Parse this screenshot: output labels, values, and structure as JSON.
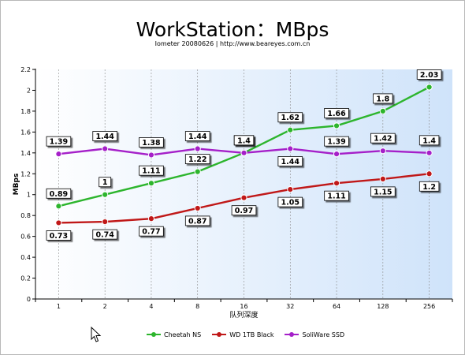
{
  "chart_data": {
    "type": "line",
    "title": "WorkStation：MBps",
    "subtitle": "Iometer 20080626 | http://www.beareyes.com.cn",
    "xlabel": "队列深度",
    "ylabel": "MBps",
    "categories": [
      "1",
      "2",
      "4",
      "8",
      "16",
      "32",
      "64",
      "128",
      "256"
    ],
    "ylim": [
      0,
      2.2
    ],
    "yticks": [
      "0",
      "0.2",
      "0.4",
      "0.6",
      "0.8",
      "1",
      "1.2",
      "1.4",
      "1.6",
      "1.8",
      "2",
      "2.2"
    ],
    "grid": {
      "vertical_dashed": true,
      "horizontal": false
    },
    "plot_background": "gradient white to light blue",
    "series": [
      {
        "name": "Cheetah NS",
        "color": "#2db52d",
        "values": [
          0.89,
          1,
          1.11,
          1.22,
          1.4,
          1.62,
          1.66,
          1.8,
          2.03
        ],
        "labels": [
          "0.89",
          "1",
          "1.11",
          "1.22",
          "1.4",
          "1.62",
          "1.66",
          "1.8",
          "2.03"
        ]
      },
      {
        "name": "WD 1TB Black",
        "color": "#c01818",
        "values": [
          0.73,
          0.74,
          0.77,
          0.87,
          0.97,
          1.05,
          1.11,
          1.15,
          1.2
        ],
        "labels": [
          "0.73",
          "0.74",
          "0.77",
          "0.87",
          "0.97",
          "1.05",
          "1.11",
          "1.15",
          "1.2"
        ]
      },
      {
        "name": "SoliWare SSD",
        "color": "#a520c9",
        "values": [
          1.39,
          1.44,
          1.38,
          1.44,
          1.4,
          1.44,
          1.39,
          1.42,
          1.4
        ],
        "labels": [
          "1.39",
          "1.44",
          "1.38",
          "1.44",
          "1.4",
          "1.44",
          "1.39",
          "1.42",
          "1.4"
        ]
      }
    ],
    "legend": {
      "position": "bottom"
    }
  },
  "ui": {
    "cursor_icon": "mouse-pointer-icon"
  }
}
